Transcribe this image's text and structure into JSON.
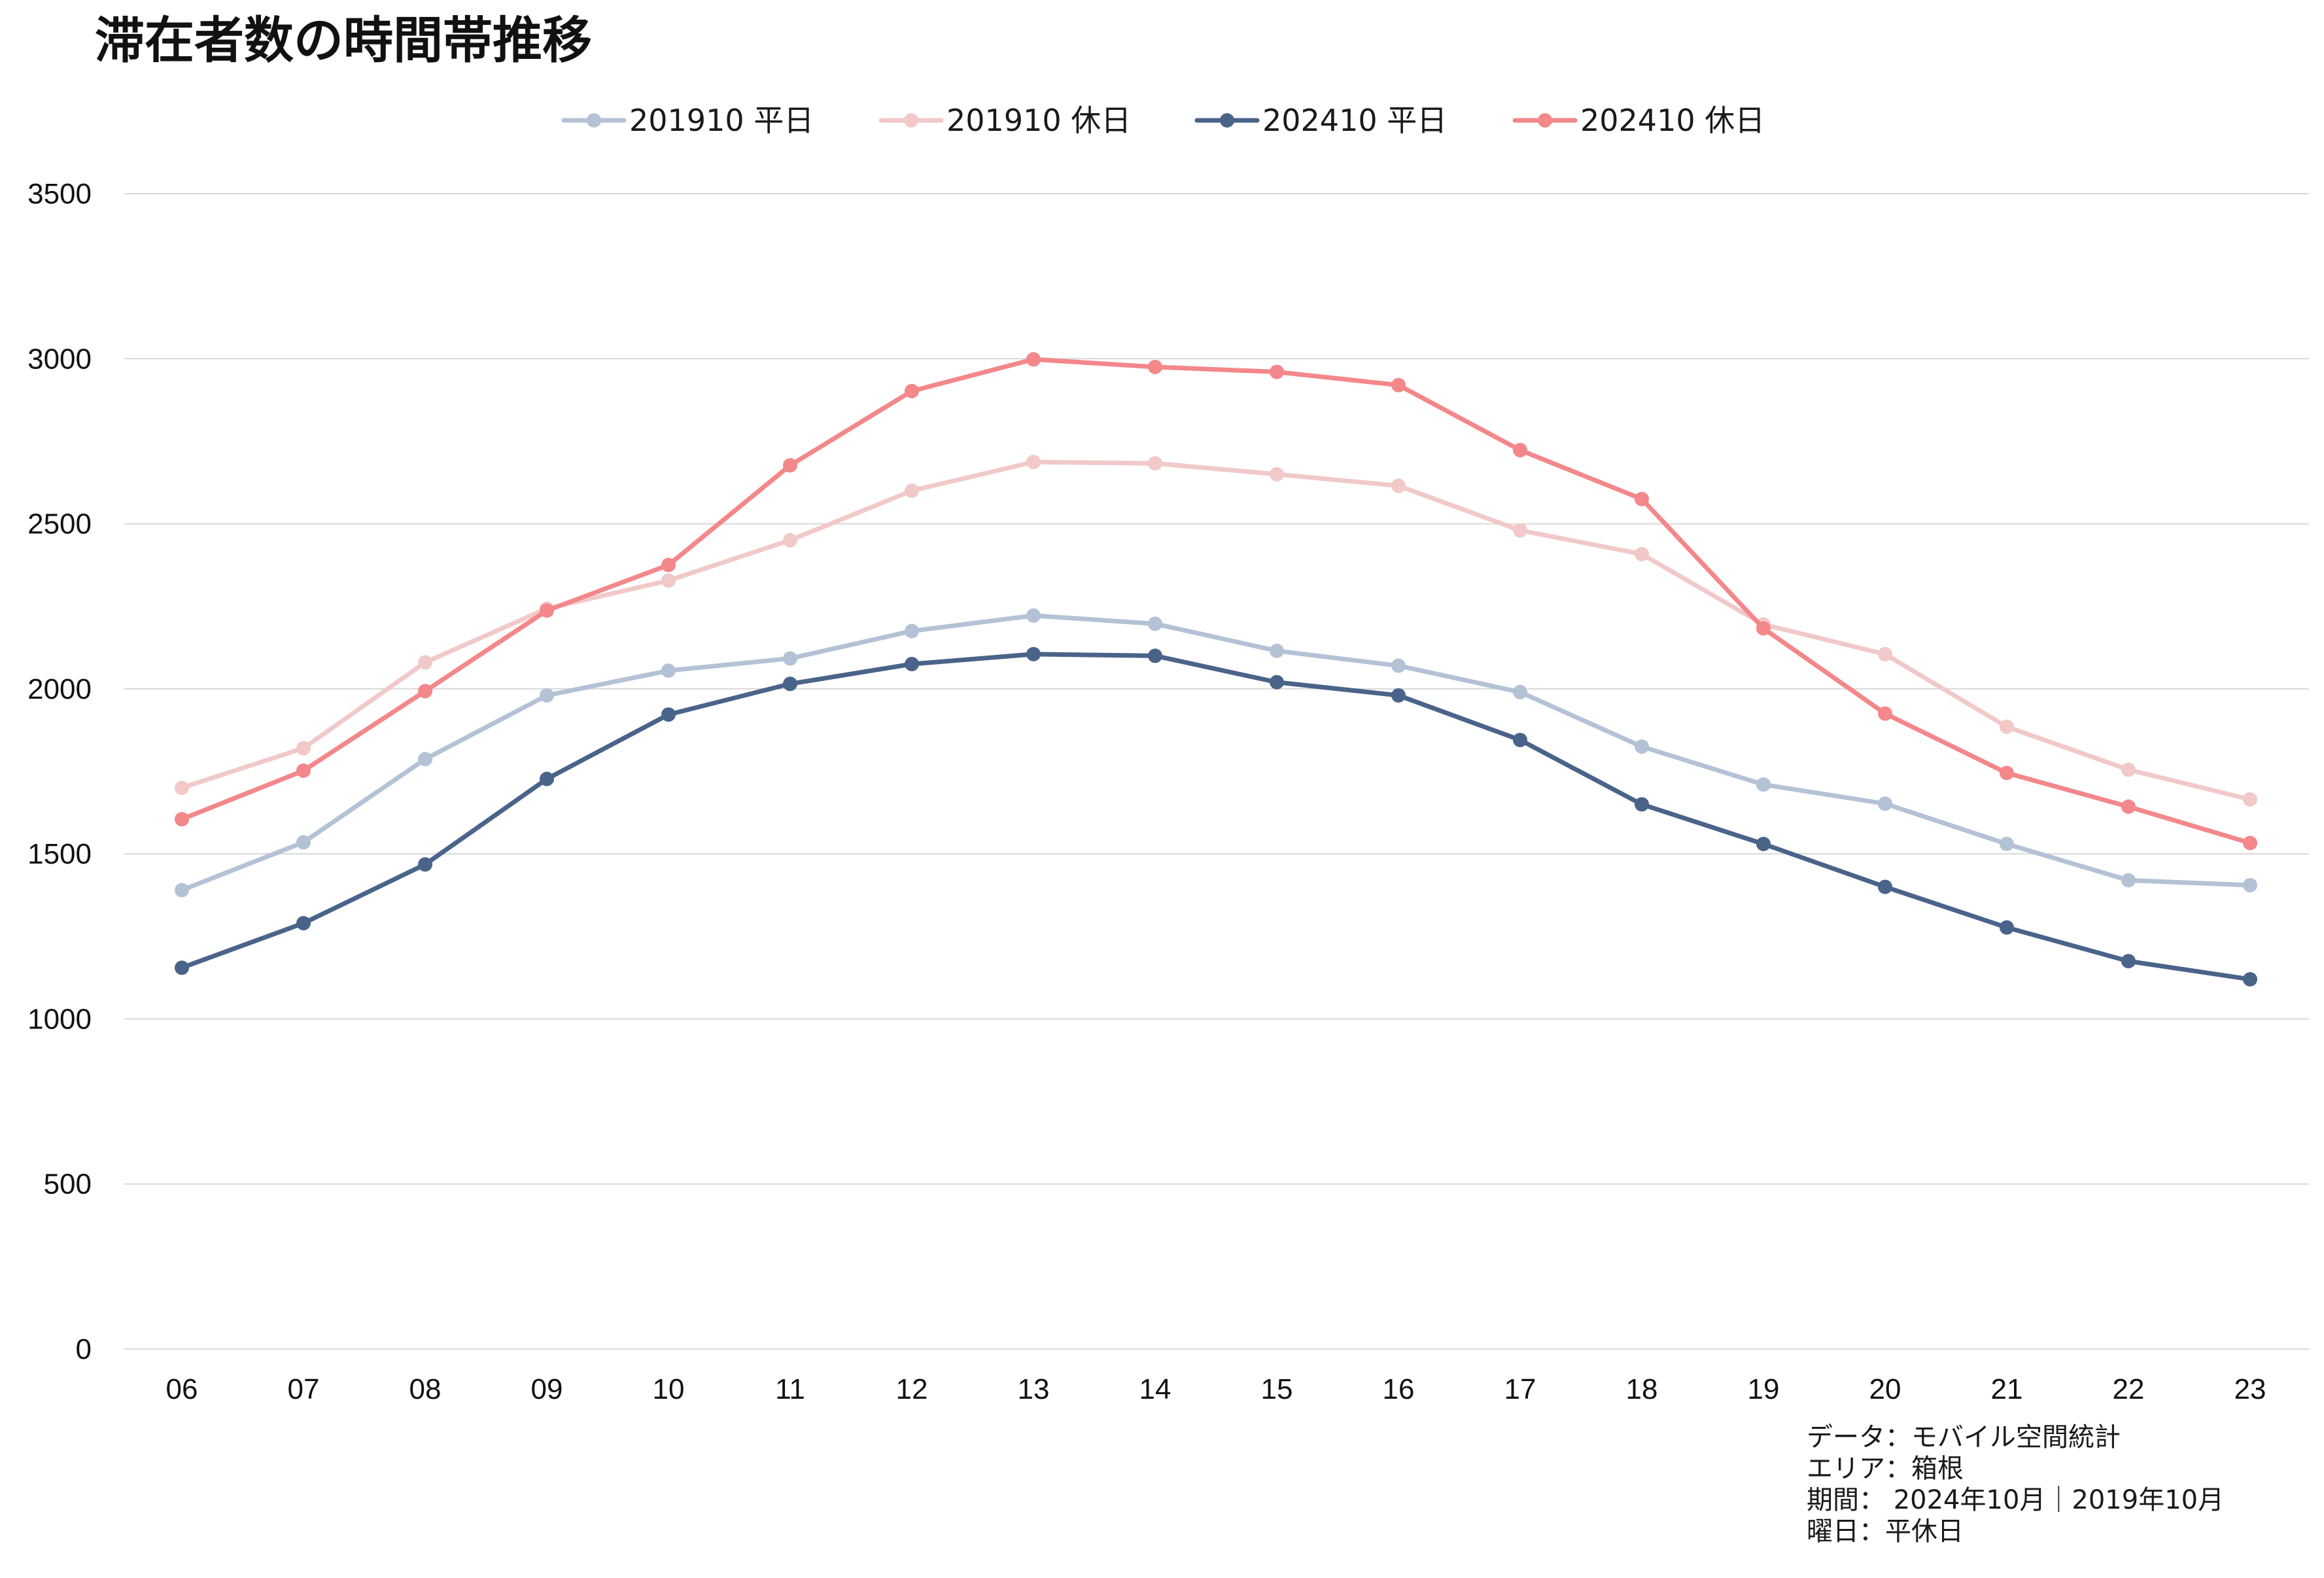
{
  "chart_data": {
    "type": "line",
    "title": "滞在者数の時間帯推移",
    "categories": [
      "06",
      "07",
      "08",
      "09",
      "10",
      "11",
      "12",
      "13",
      "14",
      "15",
      "16",
      "17",
      "18",
      "19",
      "20",
      "21",
      "22",
      "23"
    ],
    "ylim": [
      0,
      3500
    ],
    "yticks": [
      0,
      500,
      1000,
      1500,
      2000,
      2500,
      3000,
      3500
    ],
    "grid": true,
    "legend_position": "top-center",
    "series": [
      {
        "name": "201910 平日",
        "color": "#b4c2d6",
        "values": [
          1390,
          1535,
          1787,
          1980,
          2055,
          2092,
          2175,
          2222,
          2197,
          2115,
          2070,
          1990,
          1825,
          1710,
          1652,
          1530,
          1420,
          1405
        ]
      },
      {
        "name": "201910 休日",
        "color": "#f1c9c9",
        "values": [
          1700,
          1820,
          2080,
          2243,
          2328,
          2450,
          2600,
          2687,
          2683,
          2650,
          2615,
          2480,
          2408,
          2195,
          2105,
          1885,
          1755,
          1665
        ]
      },
      {
        "name": "202410 平日",
        "color": "#4a6389",
        "values": [
          1155,
          1290,
          1468,
          1727,
          1922,
          2015,
          2075,
          2105,
          2100,
          2020,
          1980,
          1845,
          1650,
          1530,
          1400,
          1277,
          1175,
          1120
        ]
      },
      {
        "name": "202410 休日",
        "color": "#f3878a",
        "values": [
          1605,
          1752,
          1993,
          2237,
          2375,
          2677,
          2902,
          2998,
          2975,
          2960,
          2920,
          2723,
          2575,
          2183,
          1925,
          1745,
          1643,
          1533
        ]
      }
    ],
    "notes": [
      "データ：モバイル空間統計",
      "エリア：箱根",
      "期間： 2024年10月｜2019年10月",
      "曜日：平休日"
    ]
  }
}
